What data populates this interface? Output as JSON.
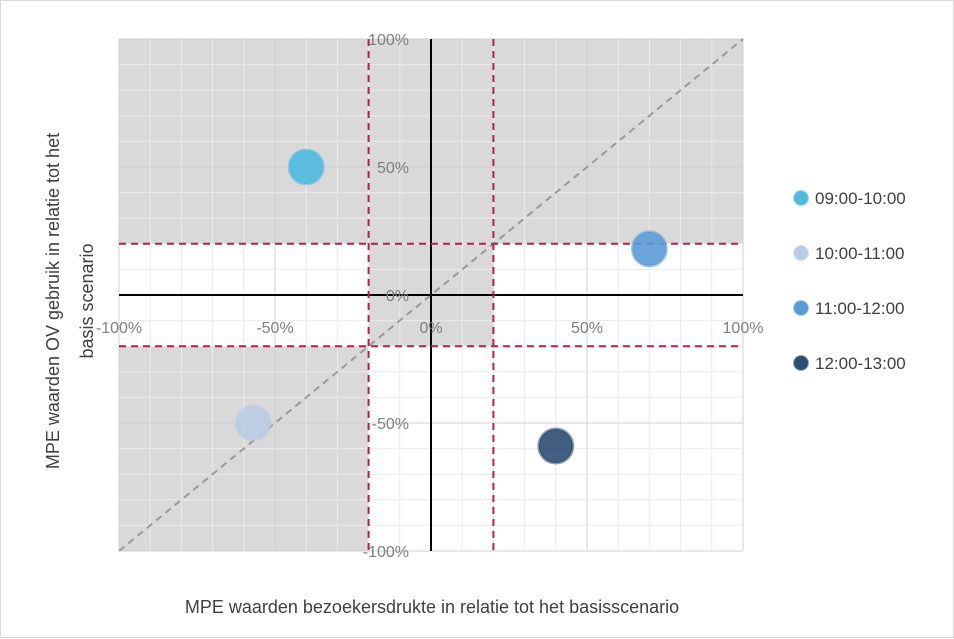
{
  "chart_data": {
    "type": "scatter",
    "xlabel": "MPE waarden bezoekersdrukte in relatie tot het basisscenario",
    "ylabel_lines": [
      "MPE waarden OV gebruik in relatie tot het",
      "basis scenario"
    ],
    "xlim": [
      -100,
      100
    ],
    "ylim": [
      -100,
      100
    ],
    "x_ticks": [
      "-100%",
      "-50%",
      "0%",
      "50%",
      "100%"
    ],
    "x_tick_values": [
      -100,
      -50,
      0,
      50,
      100
    ],
    "y_ticks": [
      "100%",
      "50%",
      "0%",
      "-50%",
      "-100%"
    ],
    "y_tick_values": [
      100,
      50,
      0,
      -50,
      -100
    ],
    "grid": true,
    "threshold_lines": {
      "x": [
        -20,
        20
      ],
      "y": [
        20,
        -20
      ],
      "color": "#b3204a"
    },
    "diagonal": {
      "from": [
        -100,
        -100
      ],
      "to": [
        100,
        100
      ],
      "color": "#9a9a9a"
    },
    "shaded_regions_color": "#d9d9d9",
    "legend_position": "right",
    "series": [
      {
        "name": "09:00-10:00",
        "color": "#4fb9e0",
        "points": [
          {
            "x": -40,
            "y": 50
          }
        ]
      },
      {
        "name": "10:00-11:00",
        "color": "#b9cce4",
        "points": [
          {
            "x": -57,
            "y": -50
          }
        ]
      },
      {
        "name": "11:00-12:00",
        "color": "#5b9bd5",
        "points": [
          {
            "x": 70,
            "y": 18
          }
        ]
      },
      {
        "name": "12:00-13:00",
        "color": "#2e4d72",
        "points": [
          {
            "x": 40,
            "y": -59
          }
        ]
      }
    ]
  }
}
